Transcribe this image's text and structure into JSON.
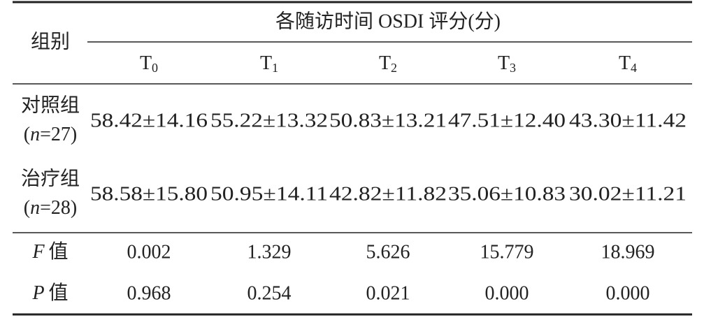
{
  "table": {
    "row_header": "组别",
    "group_header": "各随访时间 OSDI 评分(分)",
    "columns": [
      {
        "main": "T",
        "sub": "0"
      },
      {
        "main": "T",
        "sub": "1"
      },
      {
        "main": "T",
        "sub": "2"
      },
      {
        "main": "T",
        "sub": "3"
      },
      {
        "main": "T",
        "sub": "4"
      }
    ],
    "groups": [
      {
        "name": "对照组",
        "sample": [
          "(",
          "n",
          "=27)"
        ],
        "values": [
          "58.42±14.16",
          "55.22±13.32",
          "50.83±13.21",
          "47.51±12.40",
          "43.30±11.42"
        ]
      },
      {
        "name": "治疗组",
        "sample": [
          "(",
          "n",
          "=28)"
        ],
        "values": [
          "58.58±15.80",
          "50.95±14.11",
          "42.82±11.82",
          "35.06±10.83",
          "30.02±11.21"
        ]
      }
    ],
    "stats": [
      {
        "symbol": "F",
        "label": "值",
        "values": [
          "0.002",
          "1.329",
          "5.626",
          "15.779",
          "18.969"
        ]
      },
      {
        "symbol": "P",
        "label": "值",
        "values": [
          "0.968",
          "0.254",
          "0.021",
          "0.000",
          "0.000"
        ]
      }
    ]
  }
}
